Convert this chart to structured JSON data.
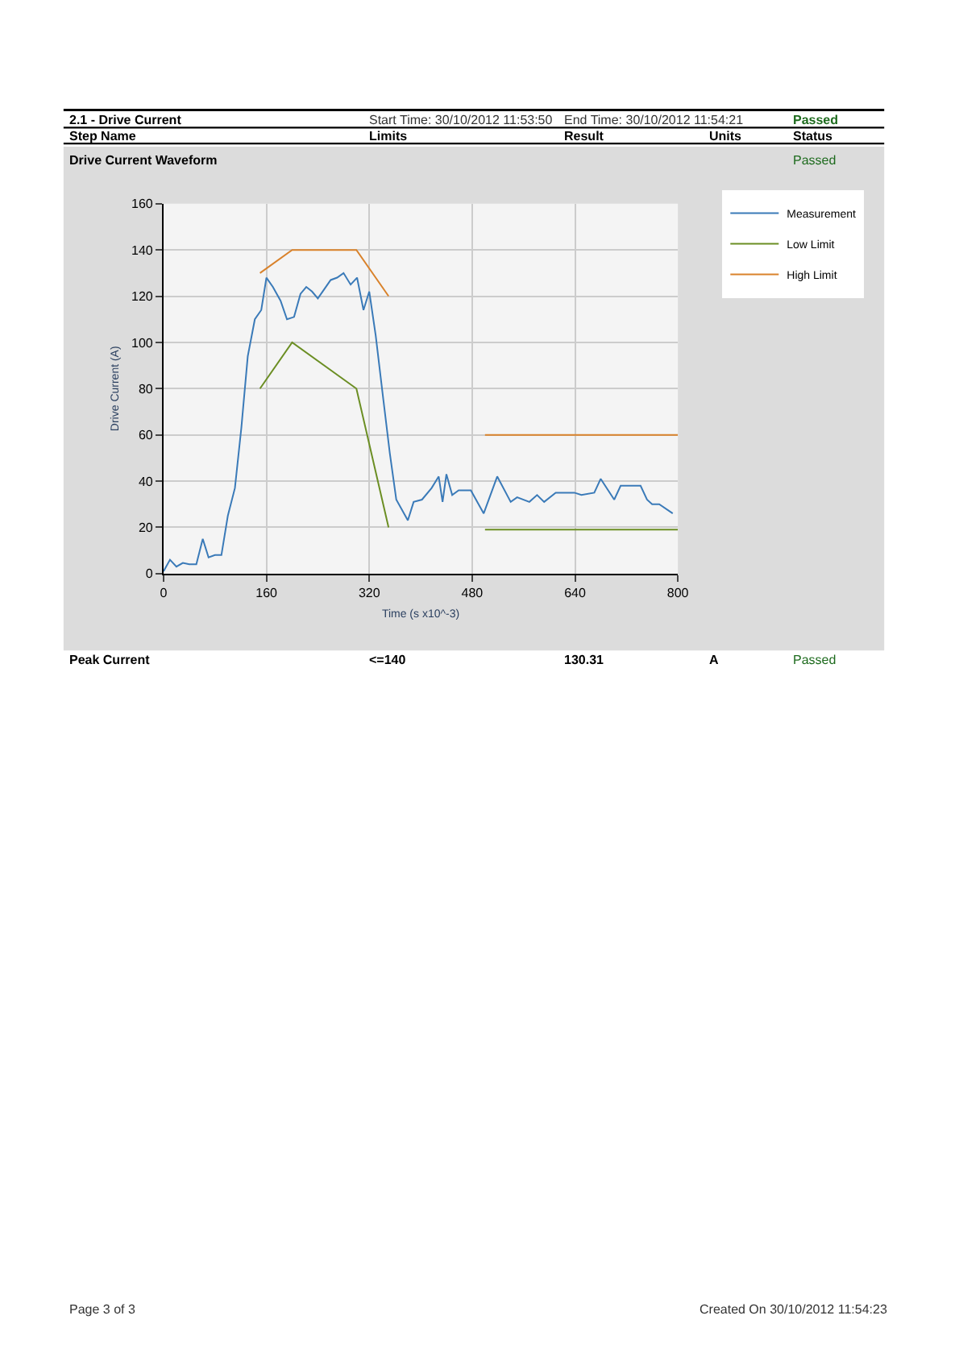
{
  "chart_data": {
    "type": "line",
    "xlabel": "Time (s x10^-3)",
    "ylabel": "Drive Current (A)",
    "xlim": [
      0,
      800
    ],
    "xticks": [
      0,
      160,
      320,
      480,
      640,
      800
    ],
    "ylim": [
      0,
      160
    ],
    "yticks": [
      0,
      20,
      40,
      60,
      80,
      100,
      120,
      140,
      160
    ],
    "grid": true,
    "legend": "top right",
    "line_style": "solid",
    "marker": "none",
    "series": [
      {
        "name": "Measurement",
        "color": "#3a7ab8",
        "x": [
          0,
          10,
          20,
          30,
          40,
          51,
          61,
          70,
          80,
          90,
          100,
          111,
          121,
          131,
          142,
          152,
          160,
          170,
          182,
          192,
          203,
          213,
          222,
          231,
          240,
          250,
          260,
          270,
          280,
          291,
          301,
          311,
          320,
          330,
          342,
          352,
          362,
          380,
          389,
          402,
          417,
          428,
          434,
          440,
          449,
          459,
          478,
          498,
          519,
          540,
          550,
          569,
          581,
          592,
          610,
          626,
          639,
          650,
          670,
          680,
          701,
          711,
          742,
          752,
          760,
          771,
          792
        ],
        "values": [
          1,
          6,
          3,
          4.6,
          4,
          4,
          15,
          7,
          8,
          8,
          25,
          37,
          63,
          94,
          110,
          114,
          128,
          124,
          118,
          110,
          111,
          121,
          124,
          122,
          119,
          123,
          127,
          128,
          130,
          125,
          128,
          114,
          122,
          103,
          75,
          52,
          32,
          23,
          31,
          32,
          37,
          42,
          31,
          43,
          34,
          36,
          36,
          26,
          42,
          31,
          33,
          31,
          34,
          31,
          35,
          35,
          35,
          34,
          35,
          41,
          32,
          38,
          38,
          32,
          30,
          30,
          26
        ]
      },
      {
        "name": "Low Limit",
        "color": "#6b8e23",
        "x": [
          150,
          200,
          300,
          350,
          420,
          500,
          800
        ],
        "values": [
          80,
          100,
          80,
          20,
          null,
          19,
          19
        ]
      },
      {
        "name": "High Limit",
        "color": "#d9822b",
        "x": [
          150,
          200,
          300,
          350,
          420,
          500,
          800
        ],
        "values": [
          130,
          140,
          140,
          120,
          null,
          60,
          60
        ]
      }
    ],
    "annotations": [
      "2.1 - Drive Current",
      "Start Time: 30/10/2012 11:53:50",
      "End Time: 30/10/2012 11:54:21",
      "Passed",
      "Step Name",
      "Limits",
      "Result",
      "Units",
      "Status",
      "Drive Current Waveform",
      "Passed",
      "Peak Current",
      "<=140",
      "130.31",
      "A",
      "Passed",
      "Page 3 of 3",
      "Created On 30/10/2012 11:54:23"
    ]
  }
}
